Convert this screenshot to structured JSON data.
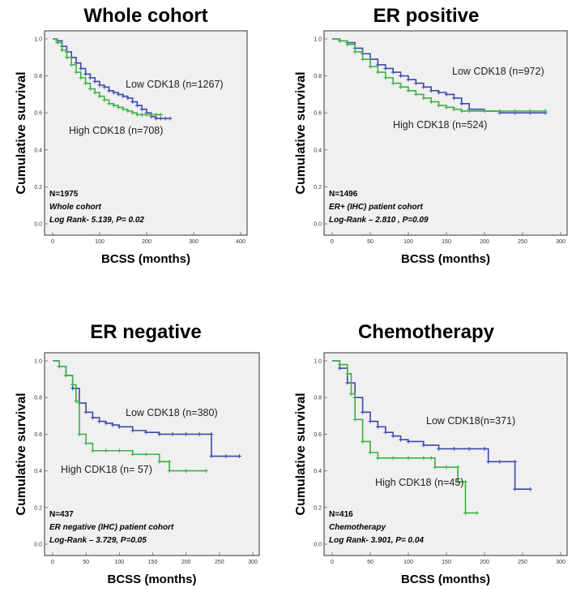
{
  "chart_data": [
    {
      "type": "line",
      "title": "Whole cohort",
      "xlabel": "BCSS (months)",
      "ylabel": "Cumulative survival",
      "xlim": [
        0,
        400
      ],
      "ylim": [
        0,
        1.0
      ],
      "xticks": [
        "0",
        "100",
        "200",
        "300",
        "400"
      ],
      "yticks": [
        "0.0",
        "0.2",
        "0.4",
        "0.6",
        "0.8",
        "1.0"
      ],
      "annotations": [
        "N=1975",
        "Whole cohort",
        "Log Rank- 5.139, P= 0.02"
      ],
      "series": [
        {
          "name": "Low CDK18 (n=1267)",
          "color": "#3a49a8",
          "x": [
            0,
            10,
            20,
            30,
            40,
            50,
            60,
            70,
            80,
            90,
            100,
            110,
            120,
            130,
            140,
            150,
            160,
            170,
            180,
            190,
            200,
            210,
            220,
            230,
            240,
            250
          ],
          "y": [
            1.0,
            0.99,
            0.96,
            0.93,
            0.9,
            0.87,
            0.84,
            0.81,
            0.79,
            0.77,
            0.75,
            0.74,
            0.72,
            0.71,
            0.7,
            0.69,
            0.68,
            0.66,
            0.64,
            0.62,
            0.6,
            0.58,
            0.57,
            0.57,
            0.57,
            0.57
          ]
        },
        {
          "name": "High CDK18 (n=708)",
          "color": "#3cb043",
          "x": [
            0,
            10,
            20,
            30,
            40,
            50,
            60,
            70,
            80,
            90,
            100,
            110,
            120,
            130,
            140,
            150,
            160,
            170,
            180,
            190,
            200,
            210,
            220,
            230
          ],
          "y": [
            1.0,
            0.98,
            0.94,
            0.9,
            0.86,
            0.82,
            0.79,
            0.76,
            0.73,
            0.71,
            0.69,
            0.67,
            0.65,
            0.64,
            0.63,
            0.62,
            0.61,
            0.6,
            0.59,
            0.59,
            0.59,
            0.59,
            0.59,
            0.59
          ]
        }
      ]
    },
    {
      "type": "line",
      "title": "ER positive",
      "xlabel": "BCSS (months)",
      "ylabel": "Cumulative survival",
      "xlim": [
        0,
        300
      ],
      "ylim": [
        0,
        1.0
      ],
      "xticks": [
        "0",
        "50",
        "100",
        "150",
        "200",
        "250",
        "300"
      ],
      "yticks": [
        "0.0",
        "0.2",
        "0.4",
        "0.6",
        "0.8",
        "1.0"
      ],
      "annotations": [
        "N=1496",
        "ER+ (IHC) patient cohort",
        "Log-Rank – 2.810 , P=0.09"
      ],
      "series": [
        {
          "name": "Low CDK18 (n=972)",
          "color": "#3a49a8",
          "x": [
            0,
            10,
            20,
            30,
            40,
            50,
            60,
            70,
            80,
            90,
            100,
            110,
            120,
            130,
            140,
            150,
            160,
            170,
            180,
            200,
            220,
            240,
            260,
            280
          ],
          "y": [
            1.0,
            0.99,
            0.98,
            0.95,
            0.92,
            0.89,
            0.86,
            0.84,
            0.82,
            0.8,
            0.78,
            0.76,
            0.74,
            0.72,
            0.71,
            0.7,
            0.68,
            0.65,
            0.62,
            0.61,
            0.6,
            0.6,
            0.6,
            0.6
          ]
        },
        {
          "name": "High CDK18 (n=524)",
          "color": "#3cb043",
          "x": [
            0,
            10,
            20,
            30,
            40,
            50,
            60,
            70,
            80,
            90,
            100,
            110,
            120,
            130,
            140,
            150,
            160,
            170,
            180,
            200,
            220,
            240,
            260,
            280
          ],
          "y": [
            1.0,
            0.99,
            0.97,
            0.93,
            0.89,
            0.85,
            0.82,
            0.79,
            0.76,
            0.74,
            0.72,
            0.7,
            0.68,
            0.66,
            0.64,
            0.63,
            0.62,
            0.61,
            0.61,
            0.61,
            0.61,
            0.61,
            0.61,
            0.61
          ]
        }
      ]
    },
    {
      "type": "line",
      "title": "ER negative",
      "xlabel": "BCSS (months)",
      "ylabel": "Cumulative survival",
      "xlim": [
        0,
        300
      ],
      "ylim": [
        0,
        1.0
      ],
      "xticks": [
        "0",
        "50",
        "100",
        "150",
        "200",
        "250",
        "300"
      ],
      "yticks": [
        "0.0",
        "0.2",
        "0.4",
        "0.6",
        "0.8",
        "1.0"
      ],
      "annotations": [
        "N=437",
        "ER negative (IHC) patient cohort",
        "Log-Rank – 3.729, P=0.05"
      ],
      "series": [
        {
          "name": "Low CDK18 (n=380)",
          "color": "#3a49a8",
          "x": [
            0,
            10,
            20,
            30,
            40,
            50,
            60,
            70,
            80,
            90,
            100,
            120,
            140,
            160,
            180,
            200,
            220,
            238,
            238,
            260,
            280
          ],
          "y": [
            1.0,
            0.97,
            0.92,
            0.85,
            0.77,
            0.72,
            0.69,
            0.67,
            0.66,
            0.65,
            0.64,
            0.62,
            0.61,
            0.6,
            0.6,
            0.6,
            0.6,
            0.6,
            0.48,
            0.48,
            0.48
          ]
        },
        {
          "name": "High CDK18 (n= 57)",
          "color": "#3cb043",
          "x": [
            0,
            10,
            20,
            30,
            35,
            40,
            50,
            60,
            80,
            100,
            120,
            140,
            160,
            175,
            175,
            200,
            230
          ],
          "y": [
            1.0,
            0.97,
            0.92,
            0.87,
            0.78,
            0.6,
            0.55,
            0.51,
            0.51,
            0.51,
            0.49,
            0.49,
            0.45,
            0.45,
            0.4,
            0.4,
            0.4
          ]
        }
      ]
    },
    {
      "type": "line",
      "title": "Chemotherapy",
      "xlabel": "BCSS (months)",
      "ylabel": "Cumulative survival",
      "xlim": [
        0,
        300
      ],
      "ylim": [
        0,
        1.0
      ],
      "xticks": [
        "0",
        "50",
        "100",
        "150",
        "200",
        "250",
        "300"
      ],
      "yticks": [
        "0.0",
        "0.2",
        "0.4",
        "0.6",
        "0.8",
        "1.0"
      ],
      "annotations": [
        "N=416",
        "Chemotherapy",
        "Log Rank- 3.901, P= 0.04"
      ],
      "series": [
        {
          "name": "Low CDK18(n=371)",
          "color": "#3a49a8",
          "x": [
            0,
            10,
            20,
            30,
            40,
            50,
            60,
            70,
            80,
            90,
            100,
            120,
            140,
            160,
            180,
            200,
            205,
            220,
            240,
            240,
            260
          ],
          "y": [
            1.0,
            0.96,
            0.88,
            0.8,
            0.72,
            0.67,
            0.64,
            0.61,
            0.59,
            0.57,
            0.56,
            0.54,
            0.52,
            0.52,
            0.52,
            0.52,
            0.45,
            0.45,
            0.45,
            0.3,
            0.3
          ]
        },
        {
          "name": "High CDK18 (n=45)",
          "color": "#3cb043",
          "x": [
            0,
            10,
            20,
            25,
            30,
            40,
            50,
            60,
            80,
            100,
            120,
            130,
            135,
            150,
            165,
            165,
            175,
            175,
            190
          ],
          "y": [
            1.0,
            0.98,
            0.93,
            0.82,
            0.68,
            0.56,
            0.5,
            0.47,
            0.47,
            0.47,
            0.47,
            0.47,
            0.42,
            0.42,
            0.42,
            0.34,
            0.34,
            0.17,
            0.17
          ]
        }
      ]
    }
  ]
}
